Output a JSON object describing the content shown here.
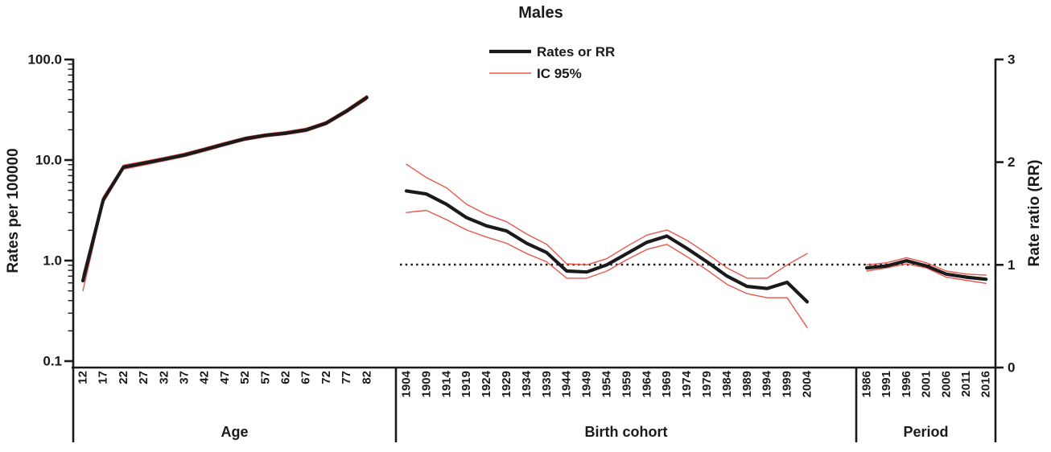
{
  "chart_data": {
    "type": "line",
    "title": "Males",
    "legend": [
      {
        "label": "Rates or RR",
        "color": "#1a1a1a",
        "line_width": 4.2
      },
      {
        "label": "IC 95%",
        "color": "#e8564c",
        "line_width": 1.5
      }
    ],
    "left_axis": {
      "label": "Rates per 100000",
      "scale": "log",
      "ticks": [
        100.0,
        10.0,
        1.0,
        0.1
      ],
      "tick_labels": [
        "100.0",
        "10.0",
        "1.0",
        "0.1"
      ]
    },
    "right_axis": {
      "label": "Rate ratio (RR)",
      "scale": "linear",
      "ticks": [
        3,
        2,
        1,
        0
      ],
      "tick_labels": [
        "3",
        "2",
        "1",
        "0"
      ]
    },
    "reference_line": {
      "value": 1,
      "axis": "right",
      "style": "dotted"
    },
    "panels": [
      {
        "name": "Age",
        "axis": "left",
        "x_labels": [
          "12",
          "17",
          "22",
          "27",
          "32",
          "37",
          "42",
          "47",
          "52",
          "57",
          "62",
          "67",
          "72",
          "77",
          "82"
        ],
        "series": {
          "rate": [
            0.63,
            4.0,
            8.5,
            9.3,
            10.2,
            11.2,
            12.7,
            14.4,
            16.3,
            17.6,
            18.5,
            19.9,
            23.3,
            30.7,
            41.9
          ],
          "lower": [
            0.5,
            3.75,
            8.1,
            8.9,
            9.8,
            10.8,
            12.2,
            13.9,
            15.7,
            17.0,
            17.9,
            19.2,
            22.5,
            29.5,
            40.0
          ],
          "upper": [
            0.72,
            4.3,
            8.9,
            9.7,
            10.6,
            11.7,
            13.2,
            15.0,
            16.9,
            18.2,
            19.2,
            20.7,
            24.2,
            31.9,
            43.9
          ]
        }
      },
      {
        "name": "Birth cohort",
        "axis": "right",
        "x_labels": [
          "1904",
          "1909",
          "1914",
          "1919",
          "1924",
          "1929",
          "1934",
          "1939",
          "1944",
          "1949",
          "1954",
          "1959",
          "1964",
          "1969",
          "1974",
          "1979",
          "1984",
          "1989",
          "1994",
          "1999",
          "2004"
        ],
        "series": {
          "rate": [
            1.72,
            1.69,
            1.59,
            1.46,
            1.38,
            1.33,
            1.21,
            1.12,
            0.94,
            0.93,
            1.0,
            1.11,
            1.22,
            1.28,
            1.16,
            1.03,
            0.89,
            0.79,
            0.77,
            0.83,
            0.64
          ],
          "lower": [
            1.51,
            1.53,
            1.44,
            1.34,
            1.27,
            1.21,
            1.11,
            1.03,
            0.87,
            0.87,
            0.94,
            1.05,
            1.15,
            1.2,
            1.08,
            0.95,
            0.81,
            0.72,
            0.68,
            0.68,
            0.39
          ],
          "upper": [
            1.98,
            1.85,
            1.75,
            1.59,
            1.49,
            1.42,
            1.3,
            1.2,
            1.01,
            1.0,
            1.06,
            1.18,
            1.29,
            1.34,
            1.24,
            1.11,
            0.97,
            0.87,
            0.87,
            1.0,
            1.11
          ]
        }
      },
      {
        "name": "Period",
        "axis": "right",
        "x_labels": [
          "1986",
          "1991",
          "1996",
          "2001",
          "2006",
          "2011",
          "2016"
        ],
        "series": {
          "rate": [
            0.97,
            0.99,
            1.04,
            0.99,
            0.91,
            0.88,
            0.86
          ],
          "lower": [
            0.94,
            0.97,
            1.01,
            0.97,
            0.88,
            0.85,
            0.82
          ],
          "upper": [
            1.0,
            1.02,
            1.07,
            1.02,
            0.94,
            0.91,
            0.9
          ]
        }
      }
    ],
    "colors": {
      "rate_line": "#1a1a1a",
      "ci_line": "#e8564c",
      "axis": "#1a1a1a"
    }
  }
}
